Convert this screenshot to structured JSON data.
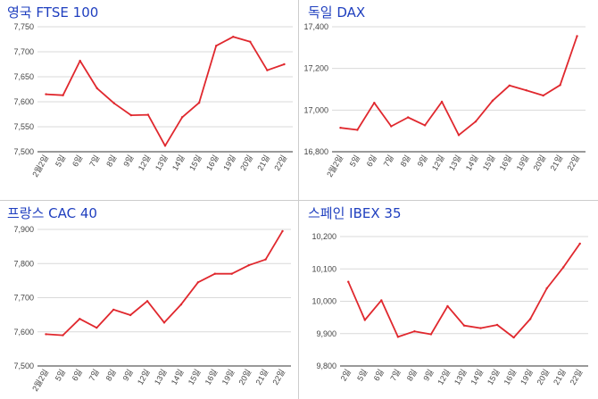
{
  "colors": {
    "line": "#e0282e",
    "title": "#1f3fbf",
    "grid": "#d9d9d9"
  },
  "chart_data": [
    {
      "type": "line",
      "title": "영국 FTSE 100",
      "categories": [
        "2월2일",
        "5일",
        "6일",
        "7일",
        "8일",
        "9일",
        "12일",
        "13일",
        "14일",
        "15일",
        "16일",
        "19일",
        "20일",
        "21일",
        "22일"
      ],
      "values": [
        7615,
        7613,
        7682,
        7627,
        7597,
        7573,
        7574,
        7512,
        7569,
        7598,
        7712,
        7730,
        7720,
        7663,
        7675
      ],
      "yticks": [
        7500,
        7550,
        7600,
        7650,
        7700,
        7750
      ],
      "ytick_labels": [
        "7,500",
        "7,550",
        "7,600",
        "7,650",
        "7,700",
        "7,750"
      ],
      "ylim": [
        7500,
        7750
      ],
      "grid": true
    },
    {
      "type": "line",
      "title": "독일 DAX",
      "categories": [
        "2월2일",
        "5일",
        "6일",
        "7일",
        "8일",
        "9일",
        "12일",
        "13일",
        "14일",
        "15일",
        "16일",
        "19일",
        "20일",
        "21일",
        "22일"
      ],
      "values": [
        16915,
        16905,
        17035,
        16922,
        16965,
        16927,
        17040,
        16880,
        16945,
        17045,
        17118,
        17095,
        17070,
        17120,
        17355
      ],
      "yticks": [
        16800,
        17000,
        17200,
        17400
      ],
      "ytick_labels": [
        "16,800",
        "17,000",
        "17,200",
        "17,400"
      ],
      "ylim": [
        16800,
        17400
      ],
      "grid": true
    },
    {
      "type": "line",
      "title": "프랑스 CAC 40",
      "categories": [
        "2월2일",
        "5일",
        "6일",
        "7일",
        "8일",
        "9일",
        "12일",
        "13일",
        "14일",
        "15일",
        "16일",
        "19일",
        "20일",
        "21일",
        "22일"
      ],
      "values": [
        7593,
        7590,
        7638,
        7612,
        7665,
        7649,
        7690,
        7627,
        7680,
        7745,
        7770,
        7770,
        7795,
        7812,
        7895
      ],
      "yticks": [
        7500,
        7600,
        7700,
        7800,
        7900
      ],
      "ytick_labels": [
        "7,500",
        "7,600",
        "7,700",
        "7,800",
        "7,900"
      ],
      "ylim": [
        7500,
        7900
      ],
      "grid": true
    },
    {
      "type": "line",
      "title": "스페인 IBEX 35",
      "categories": [
        "2일",
        "5일",
        "6일",
        "7일",
        "8일",
        "9일",
        "12일",
        "13일",
        "14일",
        "15일",
        "16일",
        "19일",
        "20일",
        "21일",
        "22일"
      ],
      "values": [
        10060,
        9942,
        10003,
        9890,
        9907,
        9898,
        9985,
        9925,
        9917,
        9927,
        9888,
        9945,
        10040,
        10105,
        10178
      ],
      "yticks": [
        9800,
        9900,
        10000,
        10100,
        10200
      ],
      "ytick_labels": [
        "9,800",
        "9,900",
        "10,000",
        "10,100",
        "10,200"
      ],
      "ylim": [
        9800,
        10200
      ],
      "grid": true
    }
  ]
}
